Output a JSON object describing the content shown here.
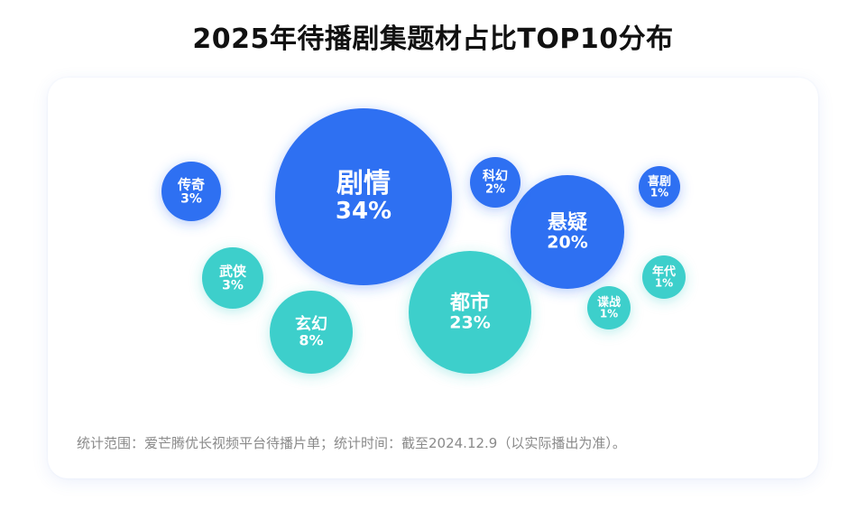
{
  "title": "2025年待播剧集题材占比TOP10分布",
  "footnote": "统计范围：爱芒腾优长视频平台待播片单；统计时间：截至2024.12.9（以实际播出为准）。",
  "colors": {
    "blue": "#2f6ff2",
    "teal": "#3ccfcb",
    "text_on_bubble": "#ffffff"
  },
  "chart_data": {
    "type": "bubble",
    "title": "2025年待播剧集题材占比TOP10分布",
    "unit": "%",
    "categories": [
      "剧情",
      "都市",
      "悬疑",
      "玄幻",
      "传奇",
      "武侠",
      "科幻",
      "喜剧",
      "年代",
      "谍战"
    ],
    "values": [
      34,
      23,
      20,
      8,
      3,
      3,
      2,
      1,
      1,
      1
    ],
    "labels": [
      "34%",
      "23%",
      "20%",
      "8%",
      "3%",
      "3%",
      "2%",
      "1%",
      "1%",
      "1%"
    ],
    "colors": [
      "blue",
      "teal",
      "blue",
      "teal",
      "blue",
      "teal",
      "blue",
      "blue",
      "teal",
      "teal"
    ],
    "legend": "none",
    "grid": false
  }
}
